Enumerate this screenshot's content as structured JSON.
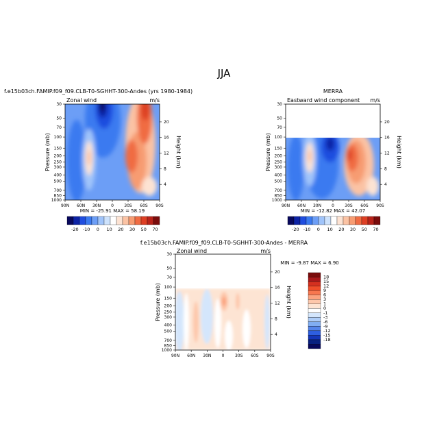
{
  "main_title": "JJA",
  "panels": [
    {
      "id": "model",
      "header_left": "f.e15b03ch.FAMIP.f09_f09.CLB-T0-SGHHT-300-Andes (yrs 1980-1984)",
      "header_right": "",
      "subtitle_left": "Zonal wind",
      "units": "m/s",
      "minmax": "MIN = -25.91   MAX = 58.19"
    },
    {
      "id": "merra",
      "header_left": "",
      "header_right": "MERRA",
      "subtitle_left": "Eastward wind component",
      "units": "m/s",
      "minmax": "MIN = -12.82   MAX = 42.07"
    },
    {
      "id": "diff",
      "header_left": "f.e15b03ch.FAMIP.f09_f09.CLB-T0-SGHHT-300-Andes - MERRA",
      "header_right": "",
      "subtitle_left": "Zonal wind",
      "units": "m/s",
      "minmax": "MIN = -9.87   MAX =  6.90"
    }
  ],
  "axes": {
    "ylabel": "Pressure (mb)",
    "y2label": "Height (km)",
    "pressure_ticks": [
      "30",
      "50",
      "70",
      "100",
      "150",
      "200",
      "250",
      "300",
      "400",
      "500",
      "700",
      "850",
      "1000"
    ],
    "height_ticks": [
      "20",
      "16",
      "12",
      "8",
      "4"
    ],
    "lat_ticks": [
      "90N",
      "60N",
      "30N",
      "0",
      "30S",
      "60S",
      "90S"
    ]
  },
  "colorbars": {
    "main_labels": [
      "-20",
      "-10",
      "0",
      "10",
      "20",
      "30",
      "50",
      "70"
    ],
    "diff_labels": [
      "18",
      "15",
      "12",
      "9",
      "6",
      "3",
      "1",
      "0",
      "-1",
      "-3",
      "-6",
      "-9",
      "-12",
      "-15",
      "-18"
    ]
  },
  "colors": {
    "main_palette": [
      "#08085c",
      "#0d23a5",
      "#1f4ddf",
      "#3b7af0",
      "#6c9ef6",
      "#a0c4fa",
      "#cde2fc",
      "#ffffff",
      "#fde3d3",
      "#fbc3a4",
      "#f79c72",
      "#f06c43",
      "#dd3f24",
      "#b8231a",
      "#7a0c0c"
    ],
    "diff_palette": [
      "#7a0c0c",
      "#a8181a",
      "#d5301f",
      "#f04e2a",
      "#f7774f",
      "#fba37f",
      "#fdc7ab",
      "#fde4d3",
      "#ffffff",
      "#d4e6fc",
      "#aecdf8",
      "#81aef2",
      "#5585ea",
      "#2e5fe0",
      "#1436b8",
      "#082080",
      "#08085c"
    ]
  },
  "chart_data": [
    {
      "type": "heatmap",
      "title": "Zonal wind",
      "xlabel": "",
      "ylabel": "Pressure (mb)",
      "x": [
        90,
        60,
        30,
        0,
        -30,
        -60,
        -90
      ],
      "xlim": [
        90,
        -90
      ],
      "ylim": [
        1000,
        30
      ],
      "units": "m/s",
      "min": -25.91,
      "max": 58.19,
      "features": [
        {
          "lat": 45,
          "p": 230,
          "value": 20
        },
        {
          "lat": 15,
          "p": 30,
          "value": -25
        },
        {
          "lat": -35,
          "p": 200,
          "value": 30
        },
        {
          "lat": -55,
          "p": 30,
          "value": 55
        }
      ]
    },
    {
      "type": "heatmap",
      "title": "Eastward wind component",
      "xlabel": "",
      "ylabel": "Pressure (mb)",
      "x": [
        90,
        60,
        30,
        0,
        -30,
        -60,
        -90
      ],
      "xlim": [
        90,
        -90
      ],
      "ylim": [
        1000,
        30
      ],
      "units": "m/s",
      "min": -12.82,
      "max": 42.07,
      "features": [
        {
          "lat": 45,
          "p": 230,
          "value": 20
        },
        {
          "lat": 10,
          "p": 110,
          "value": -12
        },
        {
          "lat": -35,
          "p": 200,
          "value": 40
        }
      ]
    },
    {
      "type": "heatmap",
      "title": "Zonal wind",
      "xlabel": "",
      "ylabel": "Pressure (mb)",
      "x": [
        90,
        60,
        30,
        0,
        -30,
        -60,
        -90
      ],
      "xlim": [
        90,
        -90
      ],
      "ylim": [
        1000,
        30
      ],
      "units": "m/s",
      "min": -9.87,
      "max": 6.9,
      "features": [
        {
          "lat": 0,
          "p": 200,
          "value": 6
        },
        {
          "lat": 45,
          "p": 400,
          "value": 2
        },
        {
          "lat": 15,
          "p": 600,
          "value": -1
        }
      ]
    }
  ]
}
